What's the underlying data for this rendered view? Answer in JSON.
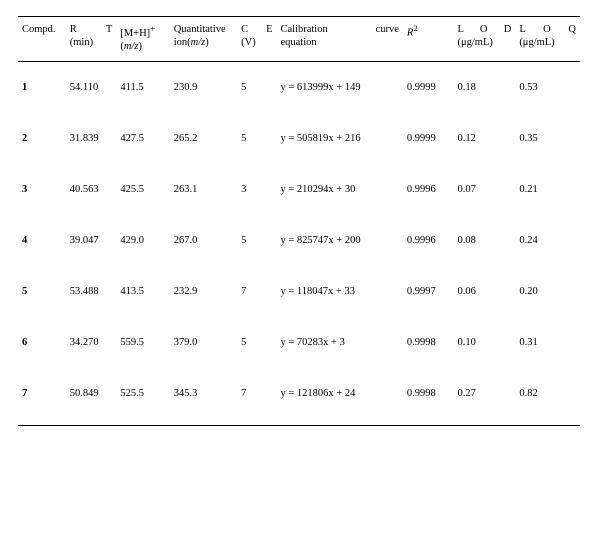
{
  "table": {
    "columns": {
      "compd": "Compd.",
      "rt_line1": "R T",
      "rt_line2": "(min)",
      "mh_line1_pre": "[M+H]",
      "mh_line1_sup": "+",
      "mh_line2_open": "(",
      "mh_line2_mz": "m/z",
      "mh_line2_close": ")",
      "qion_line1": "Quantitative",
      "qion_line2_pre": "ion(",
      "qion_line2_mz": "m/z",
      "qion_line2_close": ")",
      "ce_line1": "C E",
      "ce_line2": "(V)",
      "eq_line1": "Calibration curve",
      "eq_line2": "equation",
      "r2_base": "R",
      "r2_sup": "2",
      "lod_line1": "L O D",
      "lod_line2": "(μg/mL)",
      "loq_line1": "L O Q",
      "loq_line2": "(μg/mL)"
    },
    "rows": [
      {
        "compd": "1",
        "rt": "54.110",
        "mh": "411.5",
        "qion": "230.9",
        "ce": "5",
        "eq": "y = 613999x + 149",
        "r2": "0.9999",
        "lod": "0.18",
        "loq": "0.53"
      },
      {
        "compd": "2",
        "rt": "31.839",
        "mh": "427.5",
        "qion": "265.2",
        "ce": "5",
        "eq": "y = 505819x + 216",
        "r2": "0.9999",
        "lod": "0.12",
        "loq": "0.35"
      },
      {
        "compd": "3",
        "rt": "40.563",
        "mh": "425.5",
        "qion": "263.1",
        "ce": "3",
        "eq": "y = 210294x + 30",
        "r2": "0.9996",
        "lod": "0.07",
        "loq": "0.21"
      },
      {
        "compd": "4",
        "rt": "39.047",
        "mh": "429.0",
        "qion": "267.0",
        "ce": "5",
        "eq": "y = 825747x + 200",
        "r2": "0.9996",
        "lod": "0.08",
        "loq": "0.24"
      },
      {
        "compd": "5",
        "rt": "53.488",
        "mh": "413.5",
        "qion": "232.9",
        "ce": "7",
        "eq": "y = 118047x + 33",
        "r2": "0.9997",
        "lod": "0.06",
        "loq": "0.20"
      },
      {
        "compd": "6",
        "rt": "34.270",
        "mh": "559.5",
        "qion": "379.0",
        "ce": "5",
        "eq": "y = 70283x + 3",
        "r2": "0.9998",
        "lod": "0.10",
        "loq": "0.31"
      },
      {
        "compd": "7",
        "rt": "50.849",
        "mh": "525.5",
        "qion": "345.3",
        "ce": "7",
        "eq": "y = 121806x + 24",
        "r2": "0.9998",
        "lod": "0.27",
        "loq": "0.82"
      }
    ],
    "style": {
      "font_family": "Times New Roman",
      "header_fontsize_pt": 8,
      "body_fontsize_pt": 8,
      "rule_color": "#000000",
      "background_color": "#ffffff",
      "text_color": "#000000",
      "italic_targets": [
        "m/z",
        "R"
      ],
      "bold_column": "compd"
    }
  }
}
